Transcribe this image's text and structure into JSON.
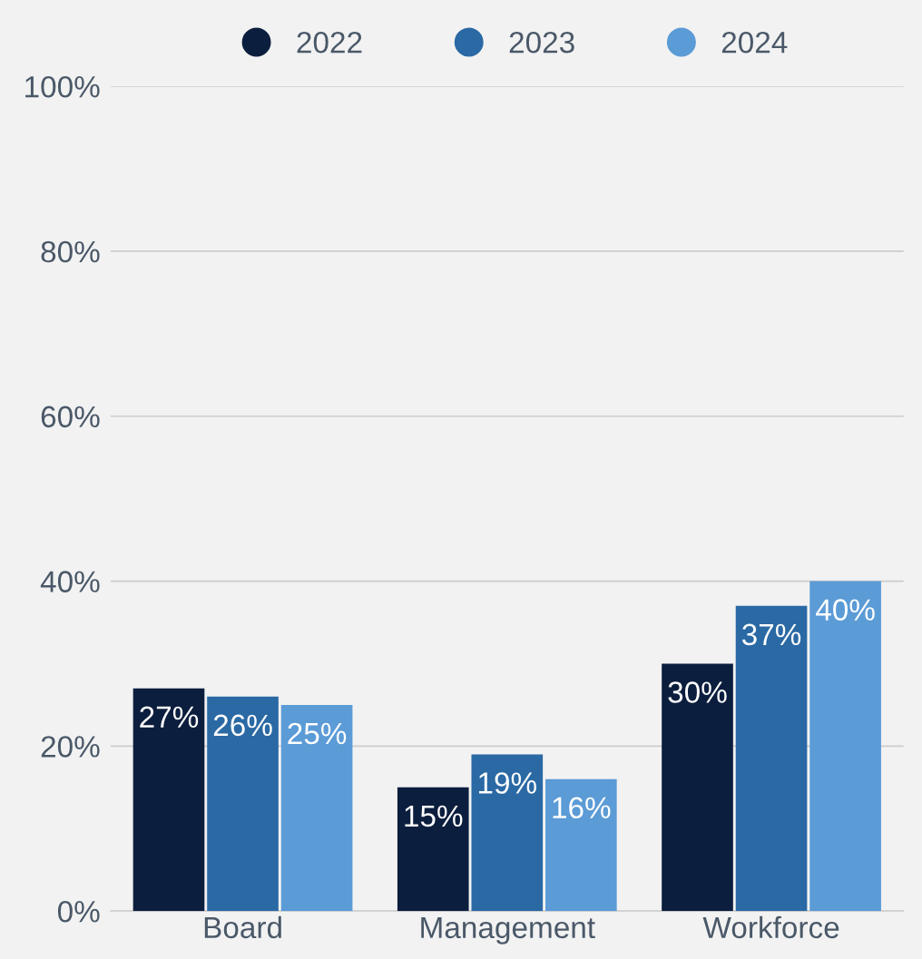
{
  "chart_data": {
    "type": "bar",
    "categories": [
      "Board",
      "Management",
      "Workforce"
    ],
    "series": [
      {
        "name": "2022",
        "color": "#0c1e3e",
        "values": [
          27,
          15,
          30
        ],
        "value_labels": [
          "27%",
          "15%",
          "30%"
        ]
      },
      {
        "name": "2023",
        "color": "#2a69a4",
        "values": [
          26,
          19,
          37
        ],
        "value_labels": [
          "26%",
          "19%",
          "37%"
        ]
      },
      {
        "name": "2024",
        "color": "#5b9bd6",
        "values": [
          25,
          16,
          40
        ],
        "value_labels": [
          "25%",
          "16%",
          "40%"
        ]
      }
    ],
    "ylim": [
      0,
      100
    ],
    "yticks": [
      {
        "value": 0,
        "label": "0%"
      },
      {
        "value": 20,
        "label": "20%"
      },
      {
        "value": 40,
        "label": "40%"
      },
      {
        "value": 60,
        "label": "60%"
      },
      {
        "value": 80,
        "label": "80%"
      },
      {
        "value": 100,
        "label": "100%"
      }
    ],
    "grid": "y",
    "legend": "top"
  }
}
